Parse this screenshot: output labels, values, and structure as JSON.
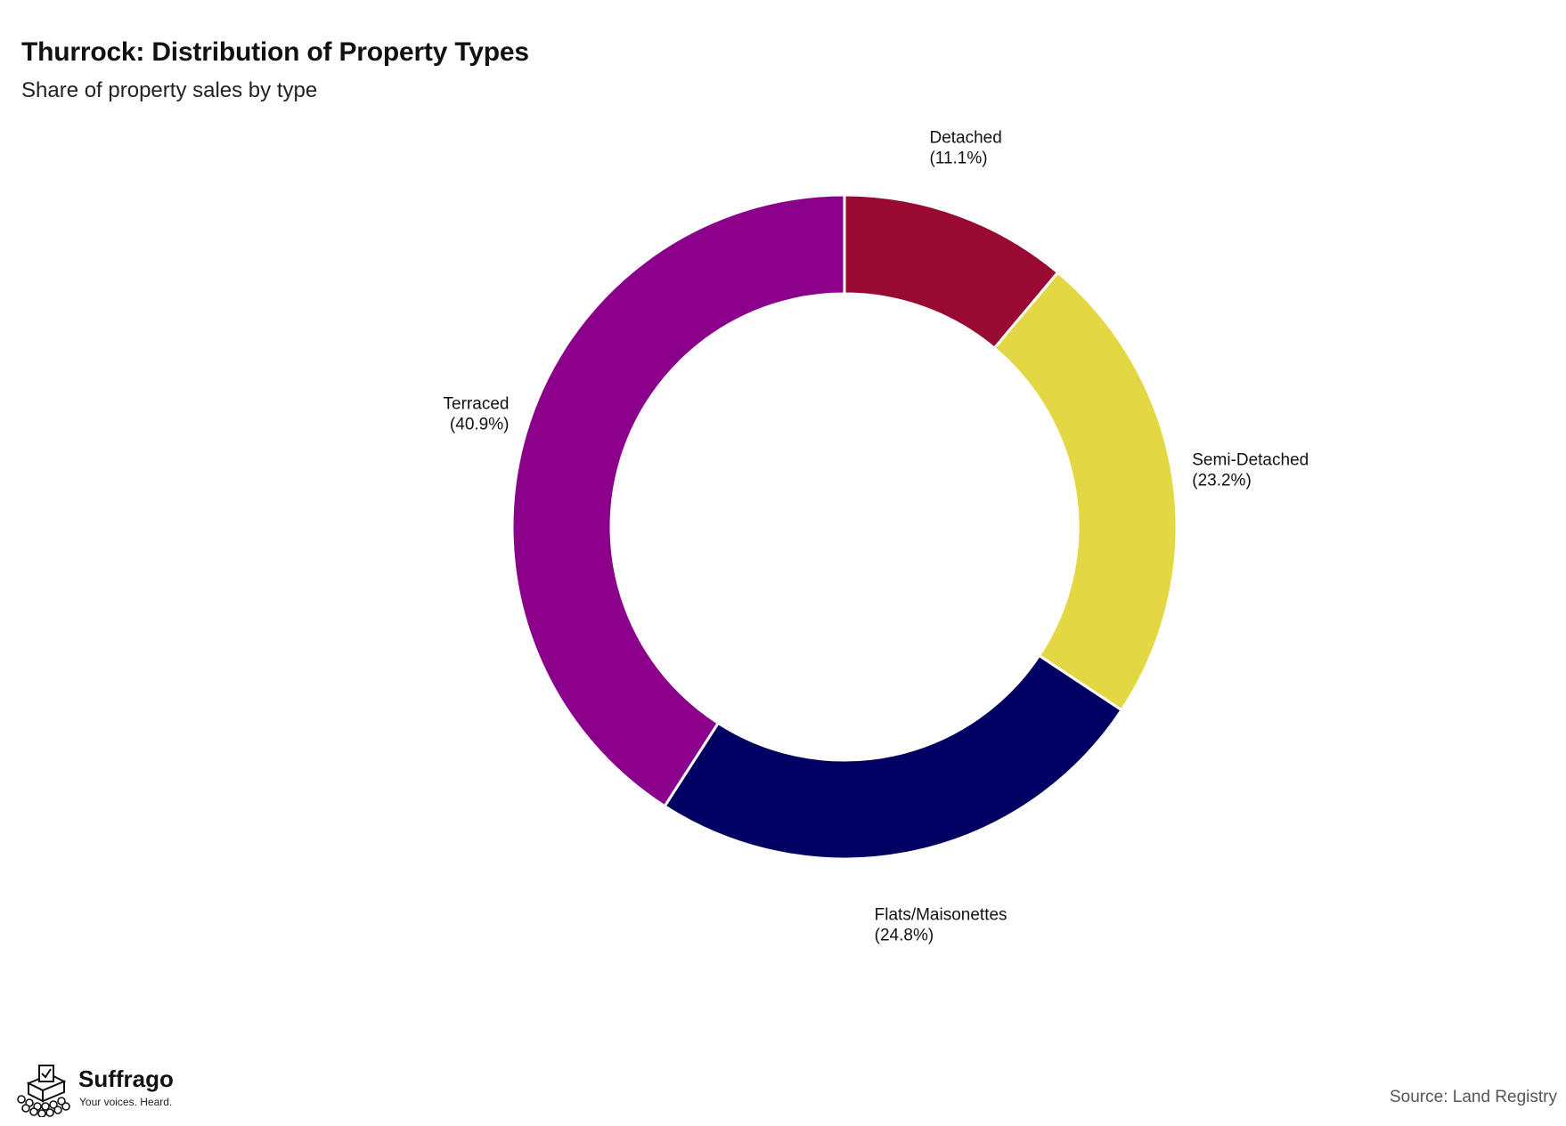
{
  "chart_data": {
    "type": "pie",
    "title": "Thurrock: Distribution of Property Types",
    "subtitle": "Share of property sales by type",
    "donut": true,
    "slices": [
      {
        "label": "Detached",
        "value": 11.1,
        "value_label": "(11.1%)",
        "color": "#990A32"
      },
      {
        "label": "Semi-Detached",
        "value": 23.2,
        "value_label": "(23.2%)",
        "color": "#E3D843"
      },
      {
        "label": "Flats/Maisonettes",
        "value": 24.8,
        "value_label": "(24.8%)",
        "color": "#000063"
      },
      {
        "label": "Terraced",
        "value": 40.9,
        "value_label": "(40.9%)",
        "color": "#8B008B"
      }
    ],
    "source": "Source: Land Registry"
  },
  "brand": {
    "name": "Suffrago",
    "tagline": "Your voices. Heard.",
    "logo_icon": "ballot-box-icon"
  }
}
